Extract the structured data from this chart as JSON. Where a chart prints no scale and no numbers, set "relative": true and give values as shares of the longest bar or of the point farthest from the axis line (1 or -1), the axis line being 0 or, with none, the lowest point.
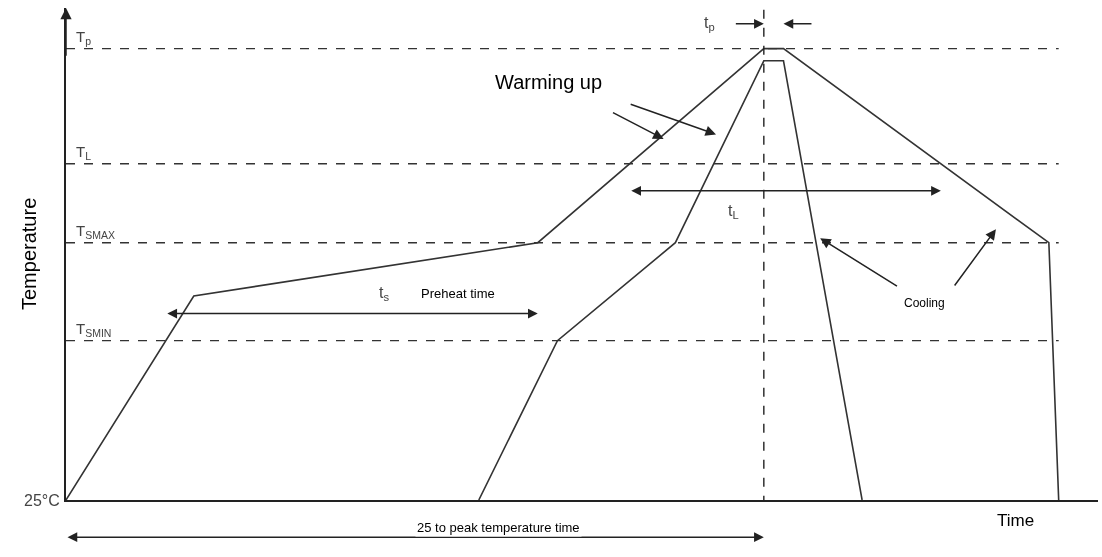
{
  "chart_data": {
    "type": "line",
    "relative": true,
    "xlabel": "Time",
    "ylabel": "Temperature",
    "categories": [
      null,
      null,
      null,
      null,
      null,
      null,
      null,
      null,
      null,
      null,
      null,
      null,
      null,
      null,
      null,
      null,
      null,
      null,
      null,
      null,
      null,
      null,
      null,
      null,
      null,
      null,
      null,
      null,
      null,
      null,
      null,
      null,
      null,
      null,
      null,
      null,
      null,
      null,
      null,
      null,
      null,
      null,
      null,
      null,
      null,
      null,
      null,
      null,
      null,
      null,
      null,
      null,
      null,
      null,
      null,
      null,
      null,
      null,
      null,
      null,
      null,
      null,
      null,
      null,
      null,
      null,
      null,
      null,
      null,
      null,
      null,
      null,
      null,
      null,
      null,
      null,
      null,
      null,
      null,
      null,
      null,
      null,
      null,
      null,
      null,
      null,
      null,
      null,
      null,
      null,
      null,
      null,
      null,
      null,
      null,
      null,
      null,
      null,
      null,
      null,
      null,
      null,
      null,
      null,
      null,
      null
    ],
    "series": [
      {
        "color": "#333333",
        "values": [
          0,
          null,
          null,
          null,
          null,
          null,
          null,
          null,
          null,
          null,
          null,
          null,
          null,
          0.452,
          null,
          null,
          null,
          null,
          null,
          null,
          null,
          null,
          null,
          null,
          null,
          null,
          null,
          null,
          null,
          null,
          null,
          null,
          null,
          null,
          null,
          null,
          null,
          null,
          null,
          null,
          null,
          null,
          null,
          null,
          null,
          null,
          null,
          null,
          0.57,
          null,
          null,
          null,
          null,
          null,
          null,
          null,
          null,
          null,
          null,
          null,
          null,
          null,
          null,
          null,
          null,
          null,
          null,
          null,
          null,
          null,
          null,
          1,
          null,
          1,
          null,
          null,
          null,
          null,
          null,
          null,
          null,
          null,
          null,
          null,
          null,
          null,
          null,
          null,
          null,
          null,
          null,
          null,
          null,
          null,
          null,
          null,
          null,
          null,
          null,
          null,
          0.57,
          0,
          null,
          null,
          null,
          null
        ]
      },
      {
        "color": "#333333",
        "values": [
          null,
          null,
          null,
          null,
          null,
          null,
          null,
          null,
          null,
          null,
          null,
          null,
          null,
          null,
          null,
          null,
          null,
          null,
          null,
          null,
          null,
          null,
          null,
          null,
          null,
          null,
          null,
          null,
          null,
          null,
          null,
          null,
          null,
          null,
          null,
          null,
          null,
          null,
          null,
          null,
          null,
          null,
          0,
          null,
          null,
          null,
          null,
          null,
          null,
          null,
          0.353,
          null,
          null,
          null,
          null,
          null,
          null,
          null,
          null,
          null,
          null,
          null,
          0.57,
          null,
          null,
          null,
          null,
          null,
          null,
          null,
          null,
          0.973,
          null,
          0.973,
          null,
          null,
          null,
          null,
          null,
          null,
          null,
          0,
          null,
          null,
          null,
          null,
          null,
          null,
          null,
          null,
          null,
          null,
          null,
          null,
          null,
          null,
          null,
          null,
          null,
          null,
          null,
          null,
          null,
          null,
          null,
          null
        ]
      }
    ],
    "ref_lines": [
      {
        "axis": "y",
        "value": 1,
        "label": "T$_{p}$",
        "line_style": "dashed",
        "color": "#333333"
      },
      {
        "axis": "y",
        "value": 0.745,
        "label": "T$_{L}$",
        "line_style": "dashed",
        "color": "#333333"
      },
      {
        "axis": "y",
        "value": 0.57,
        "label": "T$_{SMAX}$",
        "line_style": "dashed",
        "color": "#333333"
      },
      {
        "axis": "y",
        "value": 0.353,
        "label": "T$_{SMIN}$",
        "line_style": "dashed",
        "color": "#333333"
      }
    ],
    "annotations": [
      "Warming up",
      "Cooling",
      "t$_{s}$",
      "Preheat time",
      "t$_{L}$",
      "t$_{p}$",
      "25 to peak temperature time",
      "25°C"
    ],
    "marker": "none",
    "line_style": "solid"
  }
}
